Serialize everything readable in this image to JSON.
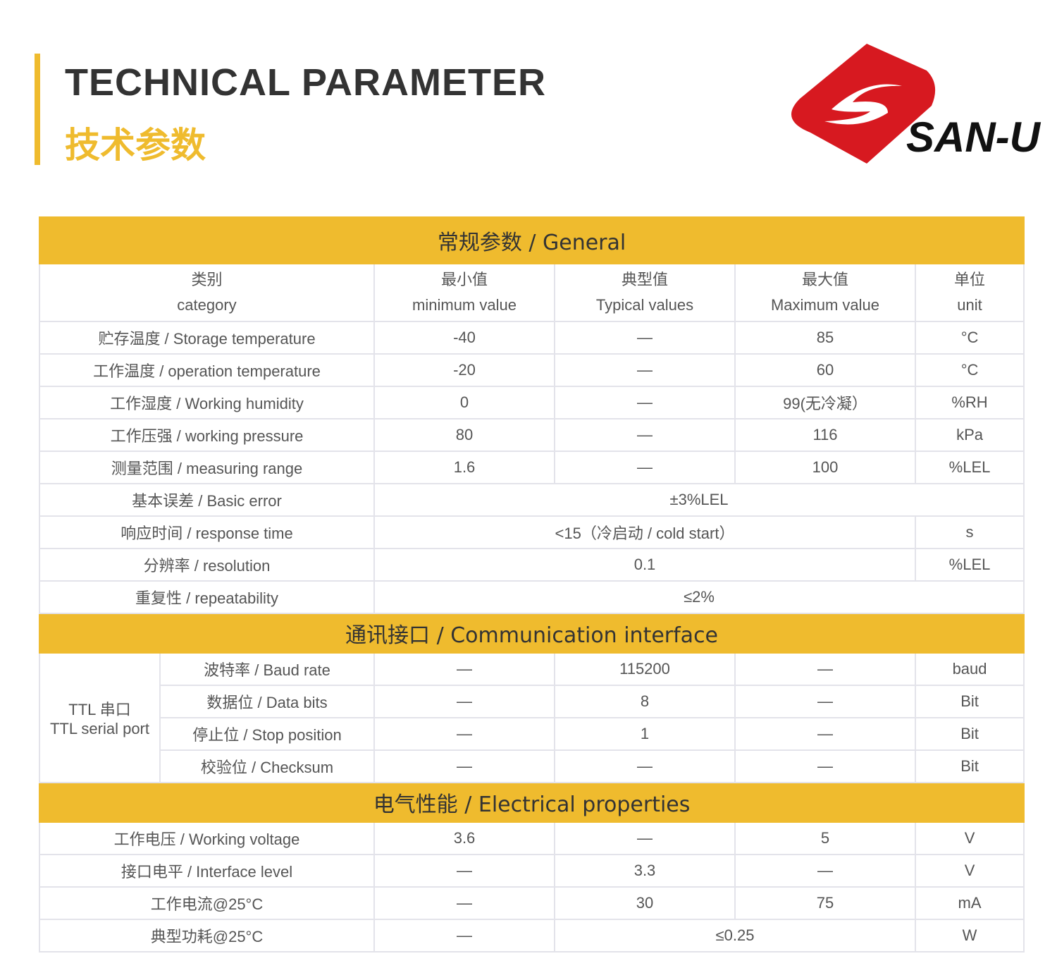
{
  "header": {
    "title_en": "TECHNICAL PARAMETER",
    "title_zh": "技术参数",
    "logo_text": "SAN-U",
    "accent_color": "#efbb2e",
    "logo_color": "#d71920"
  },
  "general": {
    "title": "常规参数 / General",
    "columns": [
      {
        "zh": "类别",
        "en": "category"
      },
      {
        "zh": "最小值",
        "en": "minimum value"
      },
      {
        "zh": "典型值",
        "en": "Typical values"
      },
      {
        "zh": "最大值",
        "en": "Maximum value"
      },
      {
        "zh": "单位",
        "en": "unit"
      }
    ],
    "rows": [
      [
        "贮存温度 / Storage temperature",
        "-40",
        "—",
        "85",
        "°C"
      ],
      [
        "工作温度 / operation temperature",
        "-20",
        "—",
        "60",
        "°C"
      ],
      [
        "工作湿度 / Working humidity",
        "0",
        "—",
        "99(无冷凝）",
        "%RH"
      ],
      [
        "工作压强 / working pressure",
        "80",
        "—",
        "116",
        "kPa"
      ],
      [
        "测量范围 / measuring range",
        "1.6",
        "—",
        "100",
        "%LEL"
      ]
    ],
    "basic_error": {
      "label": "基本误差 / Basic error",
      "value": "±3%LEL"
    },
    "response_time": {
      "label": "响应时间 / response time",
      "value": "<15（冷启动 / cold start）",
      "unit": "s"
    },
    "resolution": {
      "label": "分辨率 / resolution",
      "value": "0.1",
      "unit": "%LEL"
    },
    "repeatability": {
      "label": "重复性 / repeatability",
      "value": "≤2%"
    }
  },
  "communication": {
    "title": "通讯接口 / Communication interface",
    "group_zh": "TTL 串口",
    "group_en": "TTL serial port",
    "rows": [
      [
        "波特率 / Baud rate",
        "—",
        "115200",
        "—",
        "baud"
      ],
      [
        "数据位 / Data bits",
        "—",
        "8",
        "—",
        "Bit"
      ],
      [
        "停止位 / Stop position",
        "—",
        "1",
        "—",
        "Bit"
      ],
      [
        "校验位 / Checksum",
        "—",
        "—",
        "—",
        "Bit"
      ]
    ]
  },
  "electrical": {
    "title": "电气性能 / Electrical properties",
    "rows": [
      [
        "工作电压 / Working voltage",
        "3.6",
        "—",
        "5",
        "V"
      ],
      [
        "接口电平 / Interface level",
        "—",
        "3.3",
        "—",
        "V"
      ],
      [
        "工作电流@25°C",
        "—",
        "30",
        "75",
        "mA"
      ]
    ],
    "power": {
      "label": "典型功耗@25°C",
      "min": "—",
      "value": "≤0.25",
      "unit": "W"
    }
  }
}
